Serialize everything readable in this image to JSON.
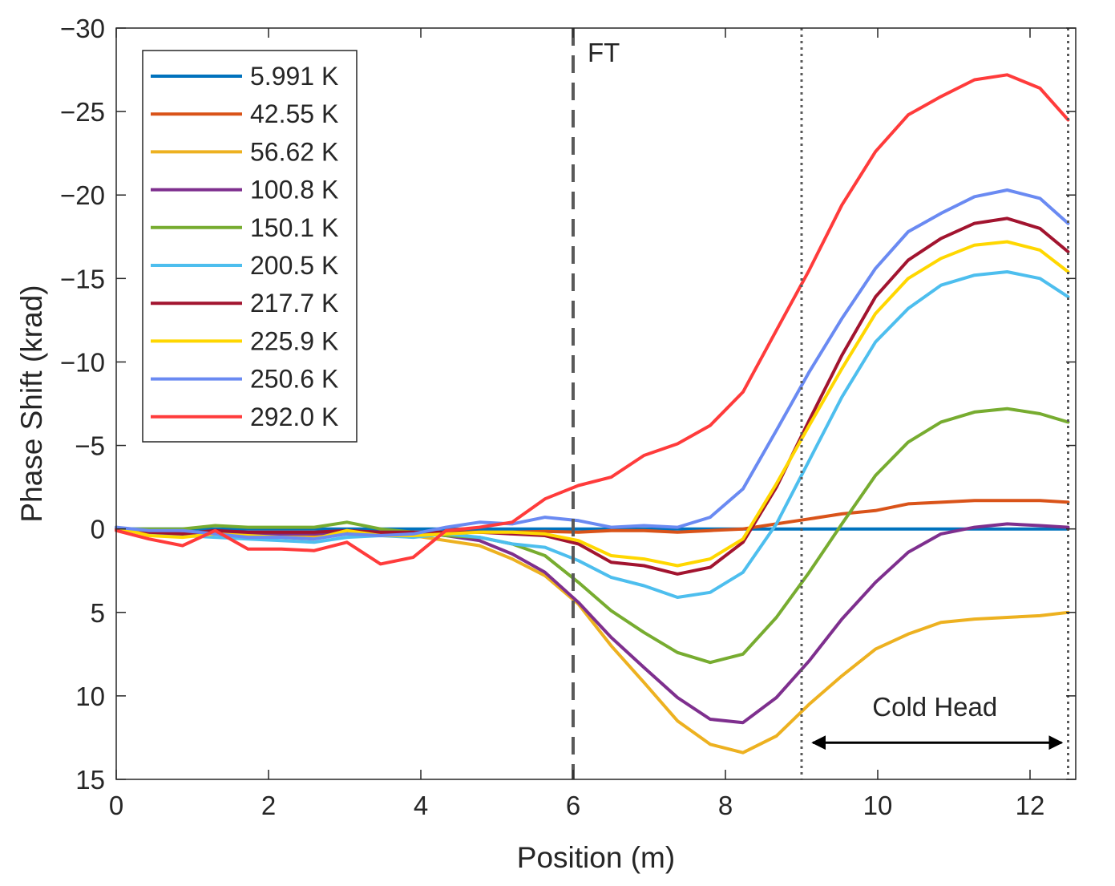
{
  "chart_data": {
    "type": "line",
    "title": "",
    "xlabel": "Position (m)",
    "ylabel": "Phase Shift (krad)",
    "xlim": [
      0,
      12.6
    ],
    "ylim": [
      -30,
      15
    ],
    "y_reversed": true,
    "xticks": [
      0,
      2,
      4,
      6,
      8,
      10,
      12
    ],
    "yticks": [
      -30,
      -25,
      -20,
      -15,
      -10,
      -5,
      0,
      5,
      10,
      15
    ],
    "ytick_labels": [
      "−30",
      "−25",
      "−20",
      "−15",
      "−10",
      "−5",
      "0",
      "5",
      "10",
      "15"
    ],
    "grid": false,
    "legend_position": "top-left",
    "x": [
      0,
      0.43,
      0.87,
      1.3,
      1.73,
      2.17,
      2.6,
      3.03,
      3.47,
      3.9,
      4.33,
      4.77,
      5.2,
      5.63,
      6.07,
      6.5,
      6.93,
      7.37,
      7.8,
      8.23,
      8.67,
      9.1,
      9.53,
      9.97,
      10.4,
      10.83,
      11.27,
      11.7,
      12.13,
      12.5
    ],
    "series": [
      {
        "name": "5.991 K",
        "color": "#0072BD",
        "values": [
          0,
          0,
          0,
          0,
          0,
          0,
          0,
          0,
          0,
          0,
          0,
          0,
          0,
          0,
          0,
          0,
          0,
          0,
          0,
          0,
          0,
          0,
          0,
          0,
          0,
          0,
          0,
          0,
          0,
          0
        ]
      },
      {
        "name": "42.55 K",
        "color": "#D95319",
        "values": [
          0,
          0.2,
          0.3,
          0.2,
          0.3,
          0.3,
          0.4,
          0.3,
          0.3,
          0.3,
          0.2,
          0.2,
          0.2,
          0.15,
          0.2,
          0.1,
          0.1,
          0.2,
          0.1,
          0,
          -0.3,
          -0.6,
          -0.9,
          -1.1,
          -1.5,
          -1.6,
          -1.7,
          -1.7,
          -1.7,
          -1.6
        ]
      },
      {
        "name": "56.62 K",
        "color": "#EDB120",
        "values": [
          0,
          0.3,
          0.4,
          0.2,
          0.4,
          0.4,
          0.5,
          0.3,
          0.4,
          0.4,
          0.7,
          1.0,
          1.8,
          2.8,
          4.5,
          7.0,
          9.2,
          11.5,
          12.9,
          13.4,
          12.4,
          10.5,
          8.8,
          7.2,
          6.3,
          5.6,
          5.4,
          5.3,
          5.2,
          5.0
        ]
      },
      {
        "name": "100.8 K",
        "color": "#7E2F8E",
        "values": [
          0,
          0.2,
          0.3,
          0.1,
          0.3,
          0.3,
          0.3,
          0.2,
          0.2,
          0.2,
          0.4,
          0.7,
          1.5,
          2.6,
          4.4,
          6.5,
          8.3,
          10.1,
          11.4,
          11.6,
          10.1,
          7.9,
          5.4,
          3.2,
          1.4,
          0.3,
          -0.1,
          -0.3,
          -0.2,
          -0.1
        ]
      },
      {
        "name": "150.1 K",
        "color": "#77AC30",
        "values": [
          0,
          0,
          0,
          -0.2,
          -0.1,
          -0.1,
          -0.1,
          -0.4,
          0,
          0.2,
          0.4,
          0.5,
          0.9,
          1.6,
          3.2,
          4.9,
          6.2,
          7.4,
          8.0,
          7.5,
          5.3,
          2.6,
          -0.3,
          -3.2,
          -5.2,
          -6.4,
          -7.0,
          -7.2,
          -6.9,
          -6.4
        ]
      },
      {
        "name": "200.5 K",
        "color": "#4DBEEE",
        "values": [
          -0.1,
          0.3,
          0.4,
          0.5,
          0.6,
          0.7,
          0.8,
          0.5,
          0.4,
          0.5,
          0.3,
          0.5,
          0.9,
          1.1,
          1.9,
          2.9,
          3.4,
          4.1,
          3.8,
          2.6,
          -0.3,
          -4.1,
          -7.9,
          -11.2,
          -13.2,
          -14.6,
          -15.2,
          -15.4,
          -15.0,
          -13.9
        ]
      },
      {
        "name": "217.7 K",
        "color": "#A2142F",
        "values": [
          0,
          0.2,
          0.3,
          0.1,
          0.2,
          0.2,
          0.2,
          0.1,
          0.2,
          0.2,
          0.2,
          0.2,
          0.3,
          0.4,
          0.9,
          2.0,
          2.2,
          2.7,
          2.3,
          0.8,
          -2.5,
          -6.5,
          -10.4,
          -13.9,
          -16.1,
          -17.4,
          -18.3,
          -18.6,
          -18.0,
          -16.6
        ]
      },
      {
        "name": "225.9 K",
        "color": "#FFD700",
        "values": [
          -0.1,
          0.4,
          0.5,
          0.3,
          0.4,
          0.5,
          0.6,
          0.1,
          0.4,
          0.4,
          0.3,
          0.2,
          0.2,
          0.3,
          0.7,
          1.6,
          1.8,
          2.2,
          1.8,
          0.6,
          -2.7,
          -6.2,
          -9.6,
          -12.9,
          -15.0,
          -16.2,
          -17.0,
          -17.2,
          -16.7,
          -15.4
        ]
      },
      {
        "name": "250.6 K",
        "color": "#6A8AF2",
        "values": [
          -0.1,
          0.1,
          0.1,
          0.3,
          0.5,
          0.5,
          0.6,
          0.3,
          0.4,
          0.3,
          -0.1,
          -0.4,
          -0.3,
          -0.7,
          -0.5,
          -0.1,
          -0.2,
          -0.1,
          -0.7,
          -2.4,
          -5.9,
          -9.4,
          -12.6,
          -15.6,
          -17.8,
          -18.9,
          -19.9,
          -20.3,
          -19.8,
          -18.3
        ]
      },
      {
        "name": "292.0 K",
        "color": "#FF3B3B",
        "values": [
          0.1,
          0.6,
          1.0,
          0.1,
          1.2,
          1.2,
          1.3,
          0.8,
          2.1,
          1.7,
          0.1,
          -0.1,
          -0.4,
          -1.8,
          -2.6,
          -3.1,
          -4.4,
          -5.1,
          -6.2,
          -8.2,
          -11.9,
          -15.5,
          -19.4,
          -22.6,
          -24.8,
          -25.9,
          -26.9,
          -27.2,
          -26.4,
          -24.5
        ]
      }
    ],
    "annotations": {
      "ft_label": "FT",
      "ft_line_x": 6.0,
      "cold_head_label": "Cold Head",
      "cold_head_start_x": 9.0,
      "cold_head_end_x": 12.5
    }
  }
}
